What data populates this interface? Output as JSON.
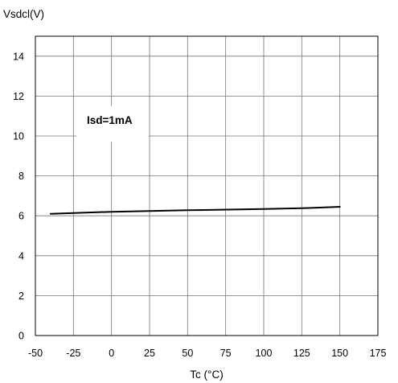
{
  "chart_data": {
    "type": "line",
    "ylabel": "Vsdcl(V)",
    "xlabel": "Tc (°C)",
    "xlim": [
      -50,
      175
    ],
    "ylim": [
      0,
      15
    ],
    "xticks": [
      -50,
      -25,
      0,
      25,
      50,
      75,
      100,
      125,
      150,
      175
    ],
    "yticks": [
      0,
      2,
      4,
      6,
      8,
      10,
      12,
      14
    ],
    "x_tick_labels": [
      "-50",
      "-25",
      "0",
      "25",
      "50",
      "75",
      "100",
      "125",
      "150",
      "175"
    ],
    "y_tick_labels": [
      "0",
      "2",
      "4",
      "6",
      "8",
      "10",
      "12",
      "14"
    ],
    "grid": true,
    "annotation": "Isd=1mA",
    "series": [
      {
        "x": [
          -40,
          0,
          50,
          100,
          125,
          150
        ],
        "y": [
          6.1,
          6.2,
          6.28,
          6.34,
          6.38,
          6.45
        ]
      }
    ],
    "colors": {
      "line": "#000000",
      "grid": "#777777",
      "frame": "#000000"
    }
  }
}
